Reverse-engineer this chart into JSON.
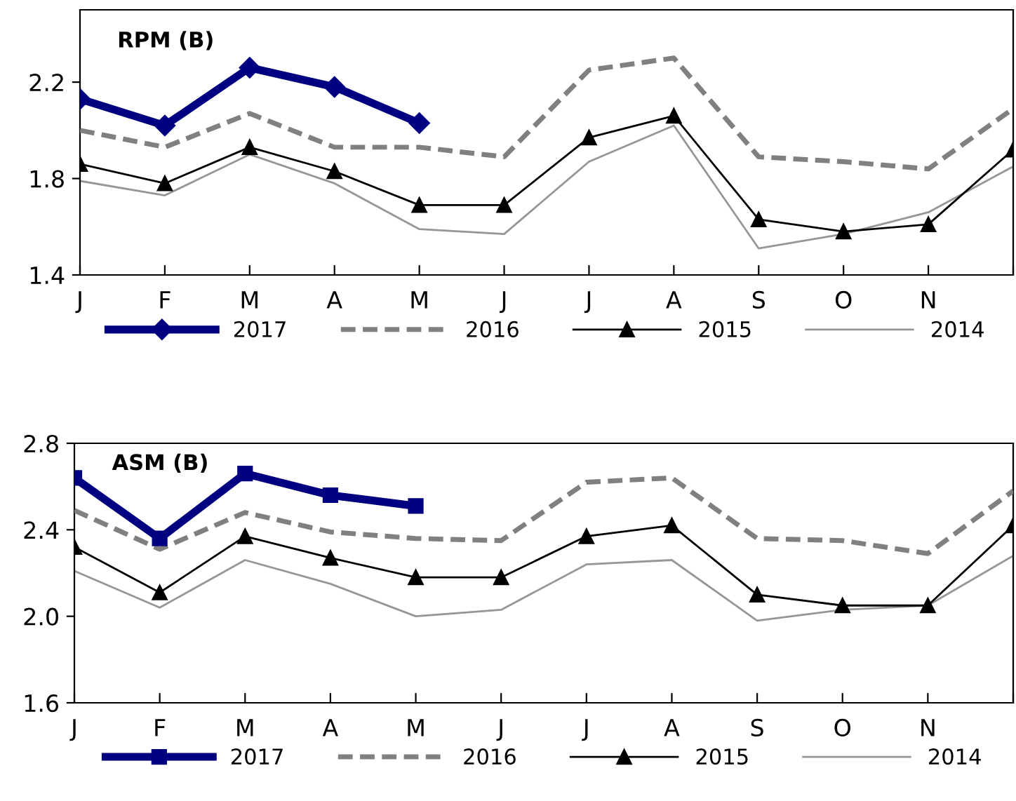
{
  "chart_data": [
    {
      "type": "line",
      "title": "RPM (B)",
      "categories": [
        "J",
        "F",
        "M",
        "A",
        "M",
        "J",
        "J",
        "A",
        "S",
        "O",
        "N",
        null
      ],
      "ylim": [
        1.4,
        2.5
      ],
      "yticks": [
        {
          "value": 1.4,
          "label": "1.4"
        },
        {
          "value": 1.8,
          "label": "1.8"
        },
        {
          "value": 2.2,
          "label": "2.2"
        }
      ],
      "grid": false,
      "legend": "bottom",
      "series": [
        {
          "name": "2017",
          "color": "#000080",
          "marker": "diamond",
          "line_style": "solid",
          "values": [
            2.13,
            2.02,
            2.26,
            2.18,
            2.03,
            null,
            null,
            null,
            null,
            null,
            null,
            null
          ]
        },
        {
          "name": "2016",
          "color": "#808080",
          "marker": "none",
          "line_style": "dashed",
          "values": [
            2.0,
            1.93,
            2.07,
            1.93,
            1.93,
            1.89,
            2.25,
            2.3,
            1.89,
            1.87,
            1.84,
            2.09
          ]
        },
        {
          "name": "2015",
          "color": "#000000",
          "marker": "triangle",
          "line_style": "solid",
          "values": [
            1.86,
            1.78,
            1.93,
            1.83,
            1.69,
            1.69,
            1.97,
            2.06,
            1.63,
            1.58,
            1.61,
            1.92
          ]
        },
        {
          "name": "2014",
          "color": "#969696",
          "marker": "none",
          "line_style": "solid",
          "values": [
            1.79,
            1.73,
            1.9,
            1.78,
            1.59,
            1.57,
            1.87,
            2.02,
            1.51,
            1.57,
            1.66,
            1.85
          ]
        }
      ]
    },
    {
      "type": "line",
      "title": "ASM (B)",
      "categories": [
        "J",
        "F",
        "M",
        "A",
        "M",
        "J",
        "J",
        "A",
        "S",
        "O",
        "N",
        null
      ],
      "ylim": [
        1.6,
        2.8
      ],
      "yticks": [
        {
          "value": 1.6,
          "label": "1.6"
        },
        {
          "value": 2.0,
          "label": "2.0"
        },
        {
          "value": 2.4,
          "label": "2.4"
        },
        {
          "value": 2.8,
          "label": "2.8"
        }
      ],
      "grid": false,
      "legend": "bottom",
      "series": [
        {
          "name": "2017",
          "color": "#000080",
          "marker": "square",
          "line_style": "solid",
          "values": [
            2.64,
            2.36,
            2.66,
            2.56,
            2.51,
            null,
            null,
            null,
            null,
            null,
            null,
            null
          ]
        },
        {
          "name": "2016",
          "color": "#808080",
          "marker": "none",
          "line_style": "dashed",
          "values": [
            2.49,
            2.31,
            2.48,
            2.39,
            2.36,
            2.35,
            2.62,
            2.64,
            2.36,
            2.35,
            2.29,
            2.58
          ]
        },
        {
          "name": "2015",
          "color": "#000000",
          "marker": "triangle",
          "line_style": "solid",
          "values": [
            2.32,
            2.11,
            2.37,
            2.27,
            2.18,
            2.18,
            2.37,
            2.42,
            2.1,
            2.05,
            2.05,
            2.42
          ]
        },
        {
          "name": "2014",
          "color": "#969696",
          "marker": "none",
          "line_style": "solid",
          "values": [
            2.21,
            2.04,
            2.26,
            2.15,
            2.0,
            2.03,
            2.24,
            2.26,
            1.98,
            2.03,
            2.05,
            2.28
          ]
        }
      ]
    }
  ]
}
